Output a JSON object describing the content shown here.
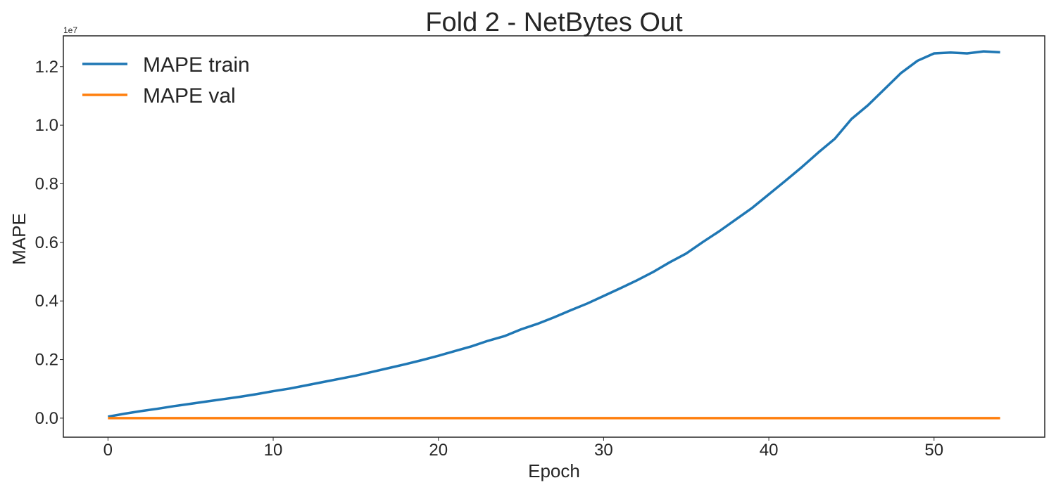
{
  "chart_data": {
    "type": "line",
    "title": "Fold 2 - NetBytes Out",
    "xlabel": "Epoch",
    "ylabel": "MAPE",
    "y_multiplier_label": "1e7",
    "xlim": [
      -2.7,
      56.7
    ],
    "ylim": [
      -650000,
      13050000
    ],
    "xticks": [
      0,
      10,
      20,
      30,
      40,
      50
    ],
    "xtick_labels": [
      "0",
      "10",
      "20",
      "30",
      "40",
      "50"
    ],
    "yticks": [
      0,
      2000000,
      4000000,
      6000000,
      8000000,
      10000000,
      12000000
    ],
    "ytick_labels": [
      "0.0",
      "0.2",
      "0.4",
      "0.6",
      "0.8",
      "1.0",
      "1.2"
    ],
    "grid": false,
    "legend_position": "top-left",
    "x": [
      0,
      1,
      2,
      3,
      4,
      5,
      6,
      7,
      8,
      9,
      10,
      11,
      12,
      13,
      14,
      15,
      16,
      17,
      18,
      19,
      20,
      21,
      22,
      23,
      24,
      25,
      26,
      27,
      28,
      29,
      30,
      31,
      32,
      33,
      34,
      35,
      36,
      37,
      38,
      39,
      40,
      41,
      42,
      43,
      44,
      45,
      46,
      47,
      48,
      49,
      50,
      51,
      52,
      53,
      54
    ],
    "series": [
      {
        "name": "MAPE train",
        "color": "#1f77b4",
        "values": [
          50000,
          150000,
          240000,
          320000,
          410000,
          490000,
          570000,
          650000,
          730000,
          820000,
          920000,
          1010000,
          1120000,
          1230000,
          1340000,
          1450000,
          1580000,
          1710000,
          1840000,
          1980000,
          2130000,
          2290000,
          2450000,
          2640000,
          2800000,
          3030000,
          3220000,
          3440000,
          3680000,
          3910000,
          4170000,
          4430000,
          4700000,
          4990000,
          5320000,
          5620000,
          6010000,
          6380000,
          6780000,
          7180000,
          7640000,
          8100000,
          8570000,
          9070000,
          9540000,
          10210000,
          10680000,
          11230000,
          11780000,
          12200000,
          12450000,
          12480000,
          12450000,
          12520000,
          12490000
        ]
      },
      {
        "name": "MAPE val",
        "color": "#ff7f0e",
        "values": [
          0,
          0,
          0,
          0,
          0,
          0,
          0,
          0,
          0,
          0,
          0,
          0,
          0,
          0,
          0,
          0,
          0,
          0,
          0,
          0,
          0,
          0,
          0,
          0,
          0,
          0,
          0,
          0,
          0,
          0,
          0,
          0,
          0,
          0,
          0,
          0,
          0,
          0,
          0,
          0,
          0,
          0,
          0,
          0,
          0,
          0,
          0,
          0,
          0,
          0,
          0,
          0,
          0,
          0,
          0
        ]
      }
    ]
  }
}
